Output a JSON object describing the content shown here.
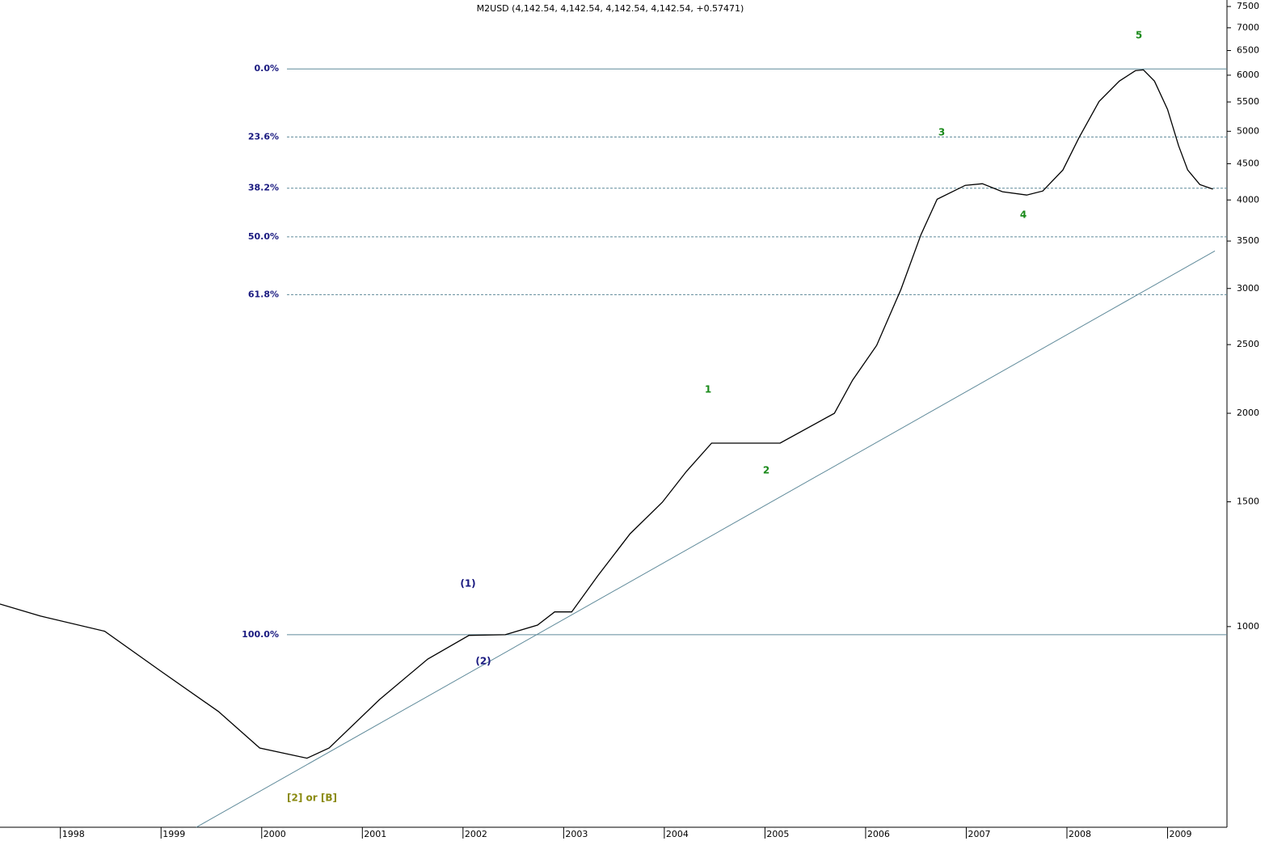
{
  "chart_data": {
    "type": "line",
    "title": "M2USD (4,142.54, 4,142.54, 4,142.54, 4,142.54, +0.57471)",
    "log_scale": true,
    "x": [
      1997.4,
      1997.8,
      1998.44,
      1999.0,
      1999.57,
      1999.98,
      2000.45,
      2000.67,
      2001.17,
      2001.65,
      2002.06,
      2002.42,
      2002.74,
      2002.91,
      2003.08,
      2003.34,
      2003.66,
      2003.98,
      2004.22,
      2004.47,
      2005.15,
      2005.69,
      2005.87,
      2006.11,
      2006.35,
      2006.55,
      2006.71,
      2006.99,
      2007.16,
      2007.36,
      2007.6,
      2007.76,
      2007.96,
      2008.12,
      2008.32,
      2008.52,
      2008.68,
      2008.76,
      2008.87,
      2009.0,
      2009.11,
      2009.2,
      2009.32,
      2009.45
    ],
    "series": [
      {
        "name": "M2USD",
        "color": "#000000",
        "values": [
          1076,
          1035,
          985,
          865,
          759,
          674,
          652,
          674,
          789,
          900,
          972,
          974,
          1005,
          1049,
          1049,
          1180,
          1352,
          1498,
          1656,
          1815,
          1815,
          2000,
          2227,
          2494,
          2989,
          3573,
          4009,
          4195,
          4217,
          4108,
          4064,
          4118,
          4409,
          4896,
          5510,
          5885,
          6089,
          6104,
          5885,
          5368,
          4769,
          4409,
          4205,
          4143
        ]
      }
    ],
    "xlim": [
      1997.4,
      2009.59
    ],
    "xticks": [
      1998,
      1999,
      2000,
      2001,
      2002,
      2003,
      2004,
      2005,
      2006,
      2007,
      2008,
      2009
    ],
    "ylim": [
      521,
      7660
    ],
    "yticks": [
      1000,
      1500,
      2000,
      2500,
      3000,
      3500,
      4000,
      4500,
      5000,
      5500,
      6000,
      6500,
      7000,
      7500
    ],
    "fibonacci": {
      "high": 6123,
      "low": 974,
      "color": "#5f8a9a",
      "levels": [
        {
          "value": 0,
          "label": "0.0%"
        },
        {
          "value": 23.6,
          "label": "23.6%"
        },
        {
          "value": 38.2,
          "label": "38.2%"
        },
        {
          "value": 50,
          "label": "50.0%"
        },
        {
          "value": 61.8,
          "label": "61.8%"
        },
        {
          "value": 100,
          "label": "100.0%"
        }
      ]
    },
    "trendline": {
      "x": [
        1999.35,
        2009.47
      ],
      "values": [
        521,
        3389
      ],
      "color": "#5f8a9a"
    },
    "annotations": [
      {
        "text": "1",
        "color": "#1a8a1a"
      },
      {
        "text": "2",
        "color": "#1a8a1a"
      },
      {
        "text": "3",
        "color": "#1a8a1a"
      },
      {
        "text": "4",
        "color": "#1a8a1a"
      },
      {
        "text": "5",
        "color": "#1a8a1a"
      },
      {
        "text": "(1)",
        "color": "#1a1a80"
      },
      {
        "text": "(2)",
        "color": "#1a1a80"
      },
      {
        "text": "[2] or [B]",
        "color": "#8a8a10"
      }
    ]
  }
}
